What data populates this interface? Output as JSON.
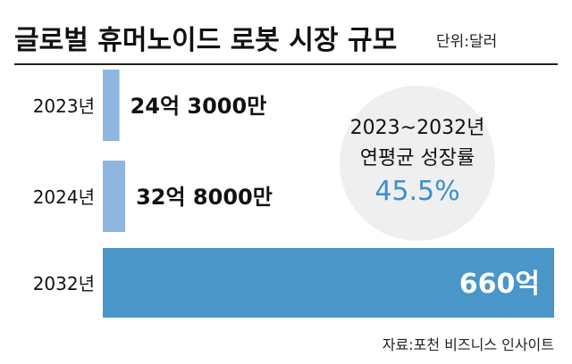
{
  "title": "글로벌 휴머노이드 로봇 시장 규모",
  "unit": "단위:달러",
  "chart_data": {
    "type": "bar",
    "orientation": "horizontal",
    "categories": [
      "2023년",
      "2024년",
      "2032년"
    ],
    "values": [
      2430000000,
      3280000000,
      66000000000
    ],
    "value_labels": [
      "24억 3000만",
      "32억 8000만",
      "660억"
    ],
    "xlim": [
      0,
      66000000000
    ],
    "grid": false,
    "legend": "none"
  },
  "callout": {
    "line1": "2023~2032년",
    "line2": "연평균 성장률",
    "value": "45.5%"
  },
  "source": "자료:포천 비즈니스 인사이트",
  "colors": {
    "bar_light": "#8fb6df",
    "bar_main": "#4a96c8",
    "circle": "#efefef",
    "accent": "#3d8fc9",
    "rule": "#222222",
    "text": "#111111"
  }
}
